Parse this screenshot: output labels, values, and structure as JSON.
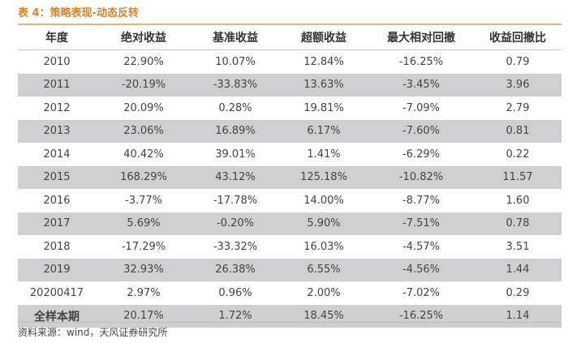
{
  "caption": "表 4：策略表现-动态反转",
  "headers": [
    "年度",
    "绝对收益",
    "基准收益",
    "超额收益",
    "最大相对回撤",
    "收益回撤比"
  ],
  "rows": [
    [
      "2010",
      "22.90%",
      "10.07%",
      "12.84%",
      "-16.25%",
      "0.79"
    ],
    [
      "2011",
      "-20.19%",
      "-33.83%",
      "13.63%",
      "-3.45%",
      "3.96"
    ],
    [
      "2012",
      "20.09%",
      "0.28%",
      "19.81%",
      "-7.09%",
      "2.79"
    ],
    [
      "2013",
      "23.06%",
      "16.89%",
      "6.17%",
      "-7.60%",
      "0.81"
    ],
    [
      "2014",
      "40.42%",
      "39.01%",
      "1.41%",
      "-6.29%",
      "0.22"
    ],
    [
      "2015",
      "168.29%",
      "43.12%",
      "125.18%",
      "-10.82%",
      "11.57"
    ],
    [
      "2016",
      "-3.77%",
      "-17.78%",
      "14.00%",
      "-8.77%",
      "1.60"
    ],
    [
      "2017",
      "5.69%",
      "-0.20%",
      "5.90%",
      "-7.51%",
      "0.78"
    ],
    [
      "2018",
      "-17.29%",
      "-33.32%",
      "16.03%",
      "-4.57%",
      "3.51"
    ],
    [
      "2019",
      "32.93%",
      "26.38%",
      "6.55%",
      "-4.56%",
      "1.44"
    ],
    [
      "20200417",
      "2.97%",
      "0.96%",
      "2.00%",
      "-7.02%",
      "0.29"
    ],
    [
      "全样本期",
      "20.17%",
      "1.72%",
      "18.45%",
      "-16.25%",
      "1.14"
    ]
  ],
  "source": "资料来源：wind，天风证券研究所",
  "colors": {
    "accent": "#d9822b",
    "rule": "#f0b27a",
    "shade": "#cfcfd1"
  }
}
